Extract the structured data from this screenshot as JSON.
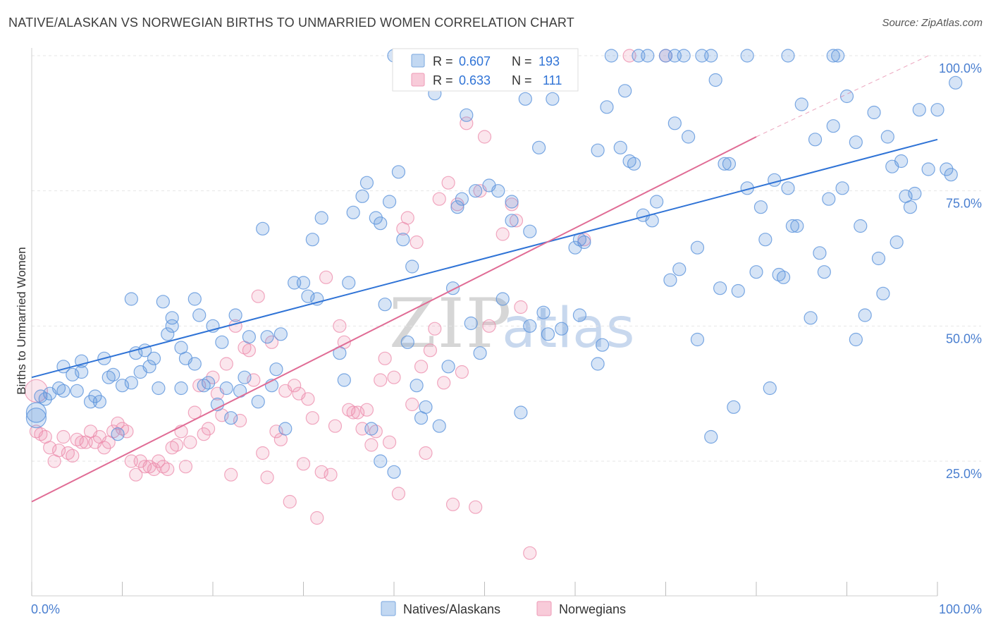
{
  "header": {
    "title": "NATIVE/ALASKAN VS NORWEGIAN BIRTHS TO UNMARRIED WOMEN CORRELATION CHART",
    "source": "Source: ZipAtlas.com"
  },
  "watermark": {
    "part1": "ZIP",
    "part2": "atlas"
  },
  "legend_top": {
    "rows": [
      {
        "r_label": "R = ",
        "r_value": "0.607",
        "n_label": "N = ",
        "n_value": "193",
        "color": "#9ec1ea"
      },
      {
        "r_label": "R = ",
        "r_value": "0.633",
        "n_label": "N = ",
        "n_value": "111",
        "color": "#f4b8cb"
      }
    ]
  },
  "legend_bottom": {
    "items": [
      "Natives/Alaskans",
      "Norwegians"
    ]
  },
  "chart_data": {
    "type": "scatter",
    "title": "NATIVE/ALASKAN VS NORWEGIAN BIRTHS TO UNMARRIED WOMEN CORRELATION CHART",
    "xlabel": "",
    "ylabel": "Births to Unmarried Women",
    "xlim": [
      0,
      100
    ],
    "ylim": [
      2,
      100
    ],
    "x_tick_labels": [
      "0.0%",
      "100.0%"
    ],
    "y_ticks": [
      25,
      50,
      75,
      100
    ],
    "y_tick_labels": [
      "25.0%",
      "50.0%",
      "75.0%",
      "100.0%"
    ],
    "grid": true,
    "legend_position": "top-center",
    "colors": {
      "natives": "#5b93dc",
      "norwegians": "#ec8bab",
      "natives_line": "#2f73d6",
      "norwegians_line": "#e06c95"
    },
    "series": [
      {
        "name": "Natives/Alaskans",
        "R": 0.607,
        "N": 193,
        "trend": {
          "x": [
            0,
            100
          ],
          "y": [
            40.5,
            84.5
          ]
        },
        "points": [
          [
            0.5,
            34
          ],
          [
            0.5,
            33
          ],
          [
            1,
            37
          ],
          [
            1.5,
            36.5
          ],
          [
            2,
            37.5
          ],
          [
            3,
            38.5
          ],
          [
            3.5,
            38
          ],
          [
            3.5,
            42.5
          ],
          [
            4.5,
            41
          ],
          [
            5,
            38
          ],
          [
            5.5,
            41.5
          ],
          [
            5.5,
            43.5
          ],
          [
            6.5,
            36
          ],
          [
            7,
            37
          ],
          [
            7.5,
            36
          ],
          [
            8,
            44
          ],
          [
            8.5,
            40.5
          ],
          [
            9,
            41
          ],
          [
            9.5,
            30
          ],
          [
            10,
            39
          ],
          [
            11,
            39.5
          ],
          [
            11,
            55
          ],
          [
            11.5,
            45
          ],
          [
            12,
            41.5
          ],
          [
            12.5,
            45.5
          ],
          [
            13,
            42.5
          ],
          [
            13.5,
            44
          ],
          [
            14,
            38.5
          ],
          [
            14.5,
            54.5
          ],
          [
            15,
            48.5
          ],
          [
            15.5,
            50
          ],
          [
            15.5,
            51.5
          ],
          [
            16.5,
            38.5
          ],
          [
            16.5,
            46
          ],
          [
            17,
            44
          ],
          [
            18,
            43
          ],
          [
            18,
            55
          ],
          [
            18.5,
            52
          ],
          [
            19,
            39
          ],
          [
            19.5,
            39.5
          ],
          [
            20,
            50
          ],
          [
            20.5,
            35.5
          ],
          [
            21,
            47
          ],
          [
            21.5,
            38.5
          ],
          [
            22,
            33
          ],
          [
            22.5,
            52
          ],
          [
            23,
            38
          ],
          [
            23.5,
            40.5
          ],
          [
            24,
            48
          ],
          [
            25,
            36
          ],
          [
            25.5,
            68
          ],
          [
            26,
            48
          ],
          [
            26.5,
            39
          ],
          [
            27,
            42
          ],
          [
            27.5,
            48.5
          ],
          [
            28,
            31
          ],
          [
            29,
            58
          ],
          [
            30,
            58
          ],
          [
            30.5,
            55.5
          ],
          [
            31,
            66
          ],
          [
            31.5,
            55
          ],
          [
            32,
            70
          ],
          [
            34,
            45
          ],
          [
            34.5,
            40
          ],
          [
            35,
            58
          ],
          [
            35.5,
            71
          ],
          [
            36.5,
            74
          ],
          [
            37,
            76.5
          ],
          [
            37.5,
            31
          ],
          [
            38,
            70
          ],
          [
            38.5,
            69
          ],
          [
            38.5,
            25
          ],
          [
            39,
            54
          ],
          [
            39.5,
            73
          ],
          [
            40,
            100
          ],
          [
            40,
            23
          ],
          [
            40.5,
            78.5
          ],
          [
            41,
            66
          ],
          [
            41.5,
            47
          ],
          [
            42,
            61
          ],
          [
            42.5,
            39
          ],
          [
            43,
            33
          ],
          [
            43.5,
            35
          ],
          [
            44,
            97.5
          ],
          [
            44.5,
            93
          ],
          [
            45,
            31.5
          ],
          [
            46,
            42.5
          ],
          [
            46.5,
            57
          ],
          [
            47,
            72
          ],
          [
            47.5,
            73.5
          ],
          [
            48,
            89
          ],
          [
            48.5,
            50.5
          ],
          [
            49,
            75
          ],
          [
            49.5,
            45
          ],
          [
            50.5,
            76
          ],
          [
            51.5,
            75
          ],
          [
            52,
            55
          ],
          [
            53,
            69.5
          ],
          [
            53,
            73
          ],
          [
            54,
            34
          ],
          [
            54.5,
            92
          ],
          [
            55,
            50
          ],
          [
            55,
            67.5
          ],
          [
            56,
            83
          ],
          [
            56.5,
            52.5
          ],
          [
            57,
            48.5
          ],
          [
            57.5,
            92
          ],
          [
            58,
            100
          ],
          [
            58.5,
            49.5
          ],
          [
            59,
            100
          ],
          [
            60.5,
            66
          ],
          [
            60,
            64.5
          ],
          [
            60.5,
            52
          ],
          [
            61,
            65.5
          ],
          [
            62.5,
            43
          ],
          [
            62.5,
            82.5
          ],
          [
            63,
            46.5
          ],
          [
            63.5,
            90.5
          ],
          [
            64,
            100
          ],
          [
            65,
            83
          ],
          [
            65.5,
            93.5
          ],
          [
            66,
            80.5
          ],
          [
            66.5,
            80
          ],
          [
            67,
            100
          ],
          [
            67.5,
            70.5
          ],
          [
            68,
            100
          ],
          [
            68.5,
            69.5
          ],
          [
            69,
            73
          ],
          [
            70,
            100
          ],
          [
            70.5,
            58.5
          ],
          [
            71,
            87.5
          ],
          [
            71,
            100
          ],
          [
            71.5,
            60.5
          ],
          [
            72,
            100
          ],
          [
            72.5,
            85
          ],
          [
            73.5,
            64.5
          ],
          [
            73.5,
            47.5
          ],
          [
            74,
            100
          ],
          [
            75,
            100
          ],
          [
            75,
            29.5
          ],
          [
            75.5,
            95.5
          ],
          [
            76,
            57
          ],
          [
            76.5,
            80
          ],
          [
            77,
            80
          ],
          [
            77.5,
            35
          ],
          [
            78,
            56.5
          ],
          [
            79,
            100
          ],
          [
            79,
            75.5
          ],
          [
            80,
            60
          ],
          [
            80.5,
            72
          ],
          [
            81,
            66
          ],
          [
            81.5,
            38.5
          ],
          [
            82,
            77
          ],
          [
            82.5,
            59.5
          ],
          [
            83,
            59
          ],
          [
            83.5,
            100
          ],
          [
            83.5,
            75.5
          ],
          [
            84,
            68.5
          ],
          [
            84.5,
            68.5
          ],
          [
            85,
            91
          ],
          [
            86,
            51.5
          ],
          [
            86.5,
            84.5
          ],
          [
            87,
            63.5
          ],
          [
            87.5,
            60
          ],
          [
            88,
            73.5
          ],
          [
            88.5,
            100
          ],
          [
            88.5,
            87
          ],
          [
            89,
            100
          ],
          [
            89.5,
            75.5
          ],
          [
            90,
            92.5
          ],
          [
            91,
            47.5
          ],
          [
            91,
            84
          ],
          [
            91.5,
            68.5
          ],
          [
            92,
            52
          ],
          [
            93,
            89.5
          ],
          [
            93.5,
            62.5
          ],
          [
            94,
            56
          ],
          [
            94.5,
            85
          ],
          [
            95,
            79.5
          ],
          [
            95.5,
            65.5
          ],
          [
            96,
            80.5
          ],
          [
            96.5,
            74
          ],
          [
            97,
            72
          ],
          [
            97.5,
            74.5
          ],
          [
            98,
            90
          ],
          [
            99,
            79
          ],
          [
            100,
            90
          ],
          [
            101,
            79
          ],
          [
            101.5,
            78
          ],
          [
            102,
            95
          ]
        ]
      },
      {
        "name": "Norwegians",
        "R": 0.633,
        "N": 111,
        "trend": {
          "x": [
            0,
            80
          ],
          "y": [
            17.5,
            85
          ]
        },
        "trend_extension": {
          "x": [
            80,
            99
          ],
          "y": [
            85,
            100
          ]
        },
        "points": [
          [
            0.5,
            38
          ],
          [
            0.5,
            30.5
          ],
          [
            1,
            30
          ],
          [
            1.5,
            29.5
          ],
          [
            2,
            27.5
          ],
          [
            2.5,
            25
          ],
          [
            3,
            27
          ],
          [
            3.5,
            29.5
          ],
          [
            4,
            26.5
          ],
          [
            4.5,
            26
          ],
          [
            5,
            29
          ],
          [
            5.5,
            28.5
          ],
          [
            6,
            28.5
          ],
          [
            6.5,
            30.5
          ],
          [
            7,
            28.5
          ],
          [
            7.5,
            29.5
          ],
          [
            8,
            27.5
          ],
          [
            8.5,
            28.5
          ],
          [
            9,
            30.5
          ],
          [
            9.5,
            32
          ],
          [
            10,
            31
          ],
          [
            10.5,
            30.5
          ],
          [
            11,
            25
          ],
          [
            11.5,
            22.5
          ],
          [
            12,
            25
          ],
          [
            12.5,
            24
          ],
          [
            13,
            24
          ],
          [
            13.5,
            23.5
          ],
          [
            14,
            25
          ],
          [
            14.5,
            24
          ],
          [
            15,
            23.5
          ],
          [
            15.5,
            27.5
          ],
          [
            16,
            28
          ],
          [
            16.5,
            30.5
          ],
          [
            17,
            24
          ],
          [
            17.5,
            28.5
          ],
          [
            18,
            34
          ],
          [
            18.5,
            39
          ],
          [
            19,
            30
          ],
          [
            19.5,
            31
          ],
          [
            20,
            40.5
          ],
          [
            20.5,
            37.5
          ],
          [
            21,
            33.5
          ],
          [
            21.5,
            43
          ],
          [
            22,
            22.5
          ],
          [
            22.5,
            50
          ],
          [
            23,
            32.5
          ],
          [
            23.5,
            46
          ],
          [
            24,
            45.5
          ],
          [
            24.5,
            40
          ],
          [
            25,
            55.5
          ],
          [
            25.5,
            26.5
          ],
          [
            26,
            22
          ],
          [
            26.5,
            47
          ],
          [
            27,
            30.5
          ],
          [
            27.5,
            29
          ],
          [
            28,
            38
          ],
          [
            28.5,
            17.5
          ],
          [
            29,
            39
          ],
          [
            29.5,
            37.5
          ],
          [
            30,
            24.5
          ],
          [
            30.5,
            36.5
          ],
          [
            31,
            33
          ],
          [
            31.5,
            14.5
          ],
          [
            32,
            23
          ],
          [
            32.5,
            59
          ],
          [
            33,
            22.5
          ],
          [
            33.5,
            31.5
          ],
          [
            34,
            50
          ],
          [
            34.5,
            47
          ],
          [
            35,
            34.5
          ],
          [
            35.5,
            34
          ],
          [
            36,
            34
          ],
          [
            36.5,
            31
          ],
          [
            37,
            34.5
          ],
          [
            37.5,
            28
          ],
          [
            38,
            30.5
          ],
          [
            38.5,
            40
          ],
          [
            39,
            44
          ],
          [
            39.5,
            28.5
          ],
          [
            40,
            40.5
          ],
          [
            40.5,
            19
          ],
          [
            41,
            68
          ],
          [
            41.5,
            70
          ],
          [
            42,
            35.5
          ],
          [
            42.5,
            65.5
          ],
          [
            43,
            42.5
          ],
          [
            43.5,
            26.5
          ],
          [
            44,
            45.5
          ],
          [
            44.5,
            49.5
          ],
          [
            45,
            73.5
          ],
          [
            45.5,
            39.5
          ],
          [
            46,
            76.5
          ],
          [
            46.5,
            17
          ],
          [
            47,
            72.5
          ],
          [
            47.5,
            41.5
          ],
          [
            48,
            87.5
          ],
          [
            49,
            16.5
          ],
          [
            49.5,
            75
          ],
          [
            50,
            85
          ],
          [
            50.5,
            50
          ],
          [
            52,
            67
          ],
          [
            53,
            72.5
          ],
          [
            53.5,
            69.5
          ],
          [
            54,
            53.5
          ],
          [
            55,
            8
          ],
          [
            61,
            66
          ],
          [
            66,
            100
          ],
          [
            70,
            100
          ]
        ]
      }
    ]
  }
}
